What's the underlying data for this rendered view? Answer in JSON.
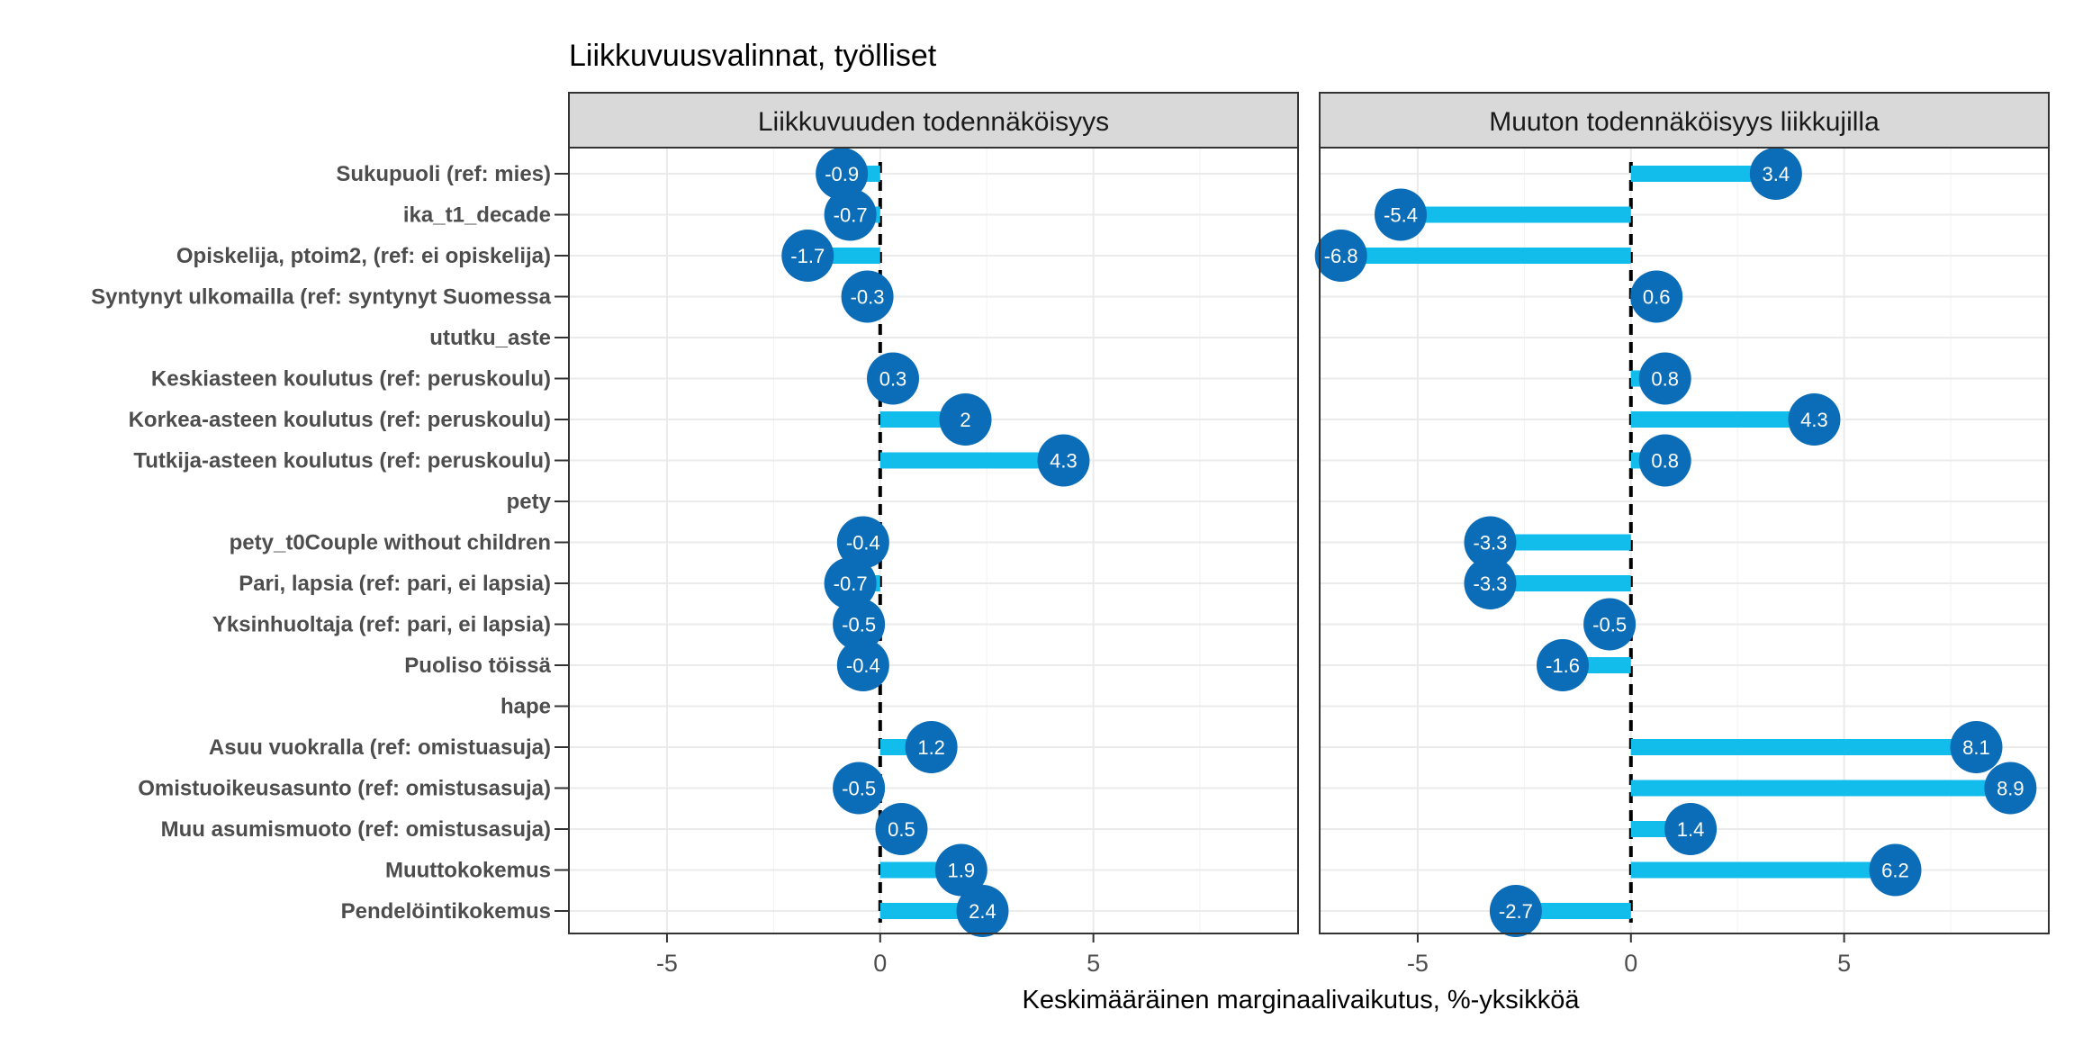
{
  "chart_data": {
    "type": "lollipop",
    "title": "Liikkuvuusvalinnat, työlliset",
    "xlabel": "Keskimääräinen marginaalivaikutus, %-yksikköä",
    "xlim": [
      -7.3,
      9.8
    ],
    "xticks": [
      -5,
      0,
      5
    ],
    "xtick_labels": [
      "-5",
      "0",
      "5"
    ],
    "grid": true,
    "colors": {
      "bar": "#12bceb",
      "point": "#0b6db7",
      "zero_line": "#000000",
      "strip": "#d9d9d9",
      "grid": "#ebebeb"
    },
    "categories": [
      "Sukupuoli (ref: mies)",
      "ika_t1_decade",
      "Opiskelija, ptoim2, (ref: ei opiskelija)",
      "Syntynyt ulkomailla (ref: syntynyt Suomessa",
      "ututku_aste",
      "Keskiasteen koulutus (ref: peruskoulu)",
      "Korkea-asteen koulutus (ref: peruskoulu)",
      "Tutkija-asteen koulutus (ref: peruskoulu)",
      "pety",
      "pety_t0Couple without children",
      "Pari, lapsia (ref: pari, ei lapsia)",
      "Yksinhuoltaja (ref: pari, ei lapsia)",
      "Puoliso töissä",
      "hape",
      "Asuu vuokralla (ref: omistuasuja)",
      "Omistuoikeusasunto (ref: omistusasuja)",
      "Muu asumismuoto (ref: omistusasuja)",
      "Muuttokokemus",
      "Pendelöintikokemus"
    ],
    "panels": [
      {
        "name": "Liikkuvuuden todennäköisyys",
        "values": [
          -0.9,
          -0.7,
          -1.7,
          -0.3,
          null,
          0.3,
          2,
          4.3,
          null,
          -0.4,
          -0.7,
          -0.5,
          -0.4,
          null,
          1.2,
          -0.5,
          0.5,
          1.9,
          2.4
        ]
      },
      {
        "name": "Muuton todennäköisyys liikkujilla",
        "values": [
          3.4,
          -5.4,
          -6.8,
          0.6,
          null,
          0.8,
          4.3,
          0.8,
          null,
          -3.3,
          -3.3,
          -0.5,
          -1.6,
          null,
          8.1,
          8.9,
          1.4,
          6.2,
          -2.7
        ]
      }
    ]
  }
}
